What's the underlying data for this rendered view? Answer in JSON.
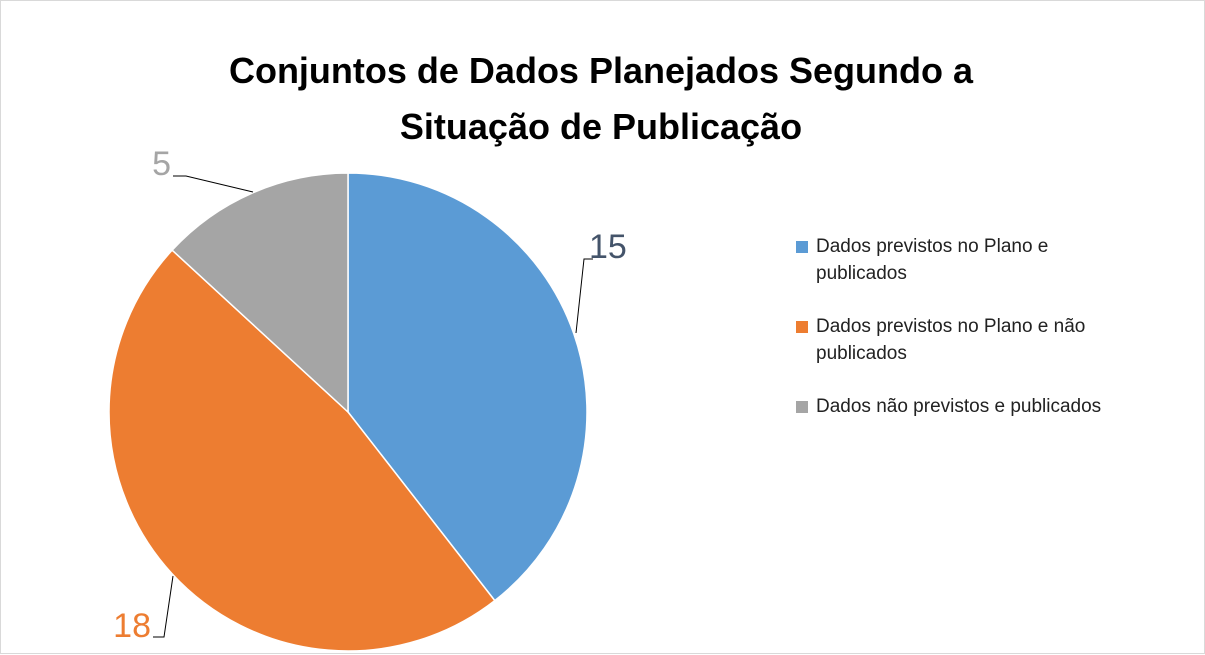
{
  "chart_data": {
    "type": "pie",
    "title": "Conjuntos de Dados Planejados Segundo a Situação de Publicação",
    "categories": [
      "Dados previstos no Plano e publicados",
      "Dados previstos no Plano e não publicados",
      "Dados não previstos e publicados"
    ],
    "values": [
      15,
      18,
      5
    ],
    "colors": [
      "#5b9bd5",
      "#ed7d31",
      "#a5a5a5"
    ],
    "legend": "right"
  }
}
